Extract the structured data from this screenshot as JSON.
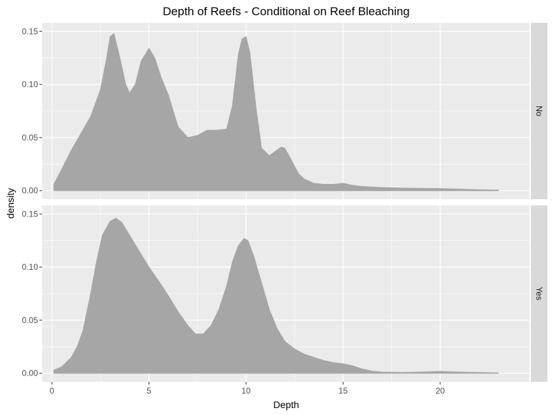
{
  "chart_data": {
    "type": "area",
    "title": "Depth of Reefs - Conditional on Reef Bleaching",
    "xlabel": "Depth",
    "ylabel": "density",
    "xlim": [
      -0.5,
      24.6
    ],
    "ylim": [
      -0.008,
      0.158
    ],
    "x_ticks": [
      0,
      5,
      10,
      15,
      20
    ],
    "y_ticks": [
      0.0,
      0.05,
      0.1,
      0.15
    ],
    "y_tick_labels": [
      "0.00",
      "0.05",
      "0.10",
      "0.15"
    ],
    "grid": true,
    "fill_color": "#a6a6a6",
    "panel_background": "#ebebeb",
    "strip_background": "#d9d9d9",
    "facets": [
      {
        "label": "No",
        "x": [
          0.1,
          0.5,
          1.0,
          1.5,
          2.0,
          2.5,
          2.8,
          3.0,
          3.2,
          3.5,
          3.8,
          4.0,
          4.3,
          4.6,
          5.0,
          5.3,
          5.6,
          6.0,
          6.5,
          7.0,
          7.5,
          8.0,
          8.5,
          9.0,
          9.3,
          9.6,
          9.8,
          10.0,
          10.2,
          10.5,
          10.8,
          11.2,
          11.5,
          11.8,
          12.0,
          12.3,
          12.7,
          13.0,
          13.5,
          14.0,
          14.5,
          15.0,
          15.5,
          16.0,
          17.0,
          18.0,
          19.0,
          20.0,
          21.0,
          22.0,
          23.0
        ],
        "y": [
          0.006,
          0.02,
          0.038,
          0.054,
          0.07,
          0.095,
          0.123,
          0.145,
          0.148,
          0.125,
          0.1,
          0.092,
          0.1,
          0.122,
          0.134,
          0.125,
          0.108,
          0.09,
          0.06,
          0.05,
          0.052,
          0.057,
          0.057,
          0.058,
          0.08,
          0.128,
          0.143,
          0.145,
          0.13,
          0.08,
          0.04,
          0.033,
          0.037,
          0.041,
          0.04,
          0.03,
          0.016,
          0.011,
          0.007,
          0.006,
          0.006,
          0.007,
          0.005,
          0.004,
          0.003,
          0.0025,
          0.0022,
          0.002,
          0.0015,
          0.001,
          0.0005
        ]
      },
      {
        "label": "Yes",
        "x": [
          0.1,
          0.5,
          1.0,
          1.3,
          1.6,
          2.0,
          2.3,
          2.6,
          3.0,
          3.3,
          3.6,
          4.0,
          4.5,
          5.0,
          5.5,
          6.0,
          6.5,
          7.0,
          7.4,
          7.8,
          8.2,
          8.6,
          9.0,
          9.3,
          9.6,
          9.9,
          10.1,
          10.4,
          10.8,
          11.2,
          11.6,
          12.0,
          12.5,
          13.0,
          13.5,
          14.0,
          14.5,
          15.0,
          15.5,
          16.0,
          16.5,
          17.0,
          18.0,
          19.0,
          20.0,
          21.0,
          22.0,
          23.0
        ],
        "y": [
          0.003,
          0.006,
          0.015,
          0.025,
          0.04,
          0.075,
          0.105,
          0.13,
          0.143,
          0.146,
          0.142,
          0.13,
          0.115,
          0.1,
          0.087,
          0.073,
          0.058,
          0.045,
          0.037,
          0.037,
          0.045,
          0.06,
          0.082,
          0.105,
          0.12,
          0.127,
          0.125,
          0.11,
          0.085,
          0.06,
          0.042,
          0.03,
          0.023,
          0.018,
          0.015,
          0.012,
          0.01,
          0.009,
          0.007,
          0.004,
          0.002,
          0.0012,
          0.0008,
          0.0012,
          0.0018,
          0.0012,
          0.0008,
          0.0004
        ]
      }
    ]
  }
}
